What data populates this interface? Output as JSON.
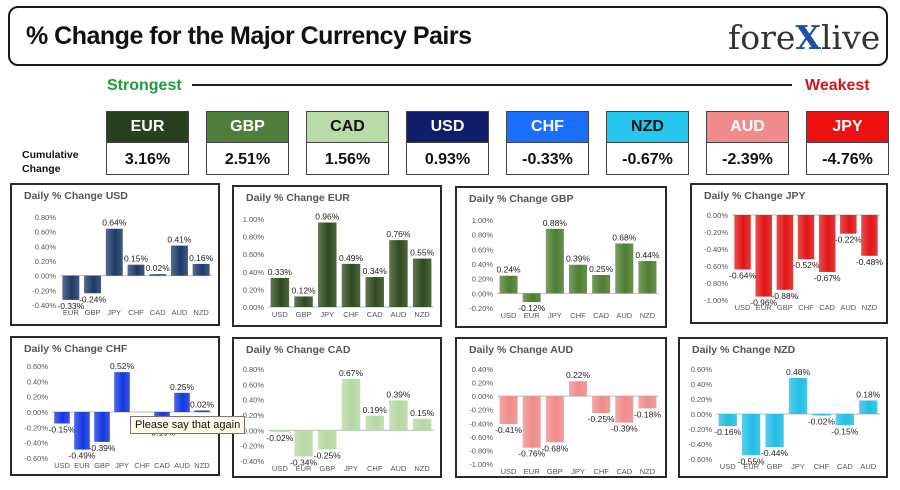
{
  "header": {
    "title": "% Change for the Major Currency Pairs",
    "logo_part1": "fore",
    "logo_x": "X",
    "logo_part2": "live"
  },
  "scale": {
    "strongest": "Strongest",
    "weakest": "Weakest"
  },
  "cumulative_label": "Cumulative Change",
  "currencies": [
    {
      "code": "EUR",
      "value": "3.16%",
      "bg": "#264020",
      "fg": "#ffffff"
    },
    {
      "code": "GBP",
      "value": "2.51%",
      "bg": "#4f7d3a",
      "fg": "#ffffff"
    },
    {
      "code": "CAD",
      "value": "1.56%",
      "bg": "#b9dba7",
      "fg": "#111111"
    },
    {
      "code": "USD",
      "value": "0.93%",
      "bg": "#0f1d6b",
      "fg": "#ffffff"
    },
    {
      "code": "CHF",
      "value": "-0.33%",
      "bg": "#1a6fff",
      "fg": "#ffffff"
    },
    {
      "code": "NZD",
      "value": "-0.67%",
      "bg": "#25c7ef",
      "fg": "#111111"
    },
    {
      "code": "AUD",
      "value": "-2.39%",
      "bg": "#f28b8b",
      "fg": "#ffffff"
    },
    {
      "code": "JPY",
      "value": "-4.76%",
      "bg": "#ee1111",
      "fg": "#ffffff"
    }
  ],
  "tooltip": "Please say that again",
  "chart_data": [
    {
      "type": "bar",
      "title": "Daily % Change USD",
      "color": "#1f3a68",
      "categories": [
        "EUR",
        "GBP",
        "JPY",
        "CHF",
        "CAD",
        "AUD",
        "NZD"
      ],
      "values": [
        -0.33,
        -0.24,
        0.64,
        0.15,
        0.02,
        0.41,
        0.16
      ],
      "labels": [
        "-0.33%",
        "-0.24%",
        "0.64%",
        "0.15%",
        "0.02%",
        "0.41%",
        "0.16%"
      ],
      "yticks": [
        "0.80%",
        "0.60%",
        "0.40%",
        "0.20%",
        "0.00%",
        "-0.20%",
        "-0.40%"
      ],
      "ylim": [
        -0.4,
        0.8
      ]
    },
    {
      "type": "bar",
      "title": "Daily % Change EUR",
      "color": "#2f4a1d",
      "categories": [
        "USD",
        "GBP",
        "JPY",
        "CHF",
        "CAD",
        "AUD",
        "NZD"
      ],
      "values": [
        0.33,
        0.12,
        0.96,
        0.49,
        0.34,
        0.76,
        0.55
      ],
      "labels": [
        "0.33%",
        "0.12%",
        "0.96%",
        "0.49%",
        "0.34%",
        "0.76%",
        "0.55%"
      ],
      "yticks": [
        "1.00%",
        "0.80%",
        "0.60%",
        "0.40%",
        "0.20%",
        "0.00%"
      ],
      "ylim": [
        0,
        1.0
      ]
    },
    {
      "type": "bar",
      "title": "Daily % Change GBP",
      "color": "#4d7d30",
      "categories": [
        "USD",
        "EUR",
        "JPY",
        "CHF",
        "CAD",
        "AUD",
        "NZD"
      ],
      "values": [
        0.24,
        -0.12,
        0.88,
        0.39,
        0.25,
        0.68,
        0.44
      ],
      "labels": [
        "0.24%",
        "-0.12%",
        "0.88%",
        "0.39%",
        "0.25%",
        "0.68%",
        "0.44%"
      ],
      "yticks": [
        "1.00%",
        "0.80%",
        "0.60%",
        "0.40%",
        "0.20%",
        "0.00%",
        "-0.20%"
      ],
      "ylim": [
        -0.2,
        1.0
      ]
    },
    {
      "type": "bar",
      "title": "Daily % Change JPY",
      "color": "#e21515",
      "categories": [
        "USD",
        "EUR",
        "GBP",
        "CHF",
        "CAD",
        "AUD",
        "NZD"
      ],
      "values": [
        -0.64,
        -0.96,
        -0.88,
        -0.52,
        -0.67,
        -0.22,
        -0.48
      ],
      "labels": [
        "-0.64%",
        "-0.96%",
        "-0.88%",
        "-0.52%",
        "-0.67%",
        "-0.22%",
        "-0.48%"
      ],
      "yticks": [
        "0.00%",
        "-0.20%",
        "-0.40%",
        "-0.60%",
        "-0.80%",
        "-1.00%"
      ],
      "ylim": [
        -1.0,
        0
      ]
    },
    {
      "type": "bar",
      "title": "Daily % Change CHF",
      "color": "#1537e0",
      "categories": [
        "USD",
        "EUR",
        "GBP",
        "JPY",
        "CHF",
        "CAD",
        "AUD",
        "NZD"
      ],
      "values": [
        -0.15,
        -0.49,
        -0.39,
        0.52,
        null,
        -0.19,
        0.25,
        0.02
      ],
      "labels": [
        "-0.15%",
        "-0.49%",
        "-0.39%",
        "0.52%",
        "",
        "-0.19%",
        "0.25%",
        "0.02%"
      ],
      "yticks": [
        "0.60%",
        "0.40%",
        "0.20%",
        "0.00%",
        "-0.20%",
        "-0.40%",
        "-0.60%"
      ],
      "ylim": [
        -0.6,
        0.6
      ]
    },
    {
      "type": "bar",
      "title": "Daily % Change CAD",
      "color": "#b5d9a3",
      "categories": [
        "USD",
        "EUR",
        "GBP",
        "JPY",
        "CHF",
        "AUD",
        "NZD"
      ],
      "values": [
        -0.02,
        -0.34,
        -0.25,
        0.67,
        0.19,
        0.39,
        0.15
      ],
      "labels": [
        "-0.02%",
        "-0.34%",
        "-0.25%",
        "0.67%",
        "0.19%",
        "0.39%",
        "0.15%"
      ],
      "yticks": [
        "0.80%",
        "0.60%",
        "0.40%",
        "0.20%",
        "0.00%",
        "-0.20%",
        "-0.40%"
      ],
      "ylim": [
        -0.4,
        0.8
      ]
    },
    {
      "type": "bar",
      "title": "Daily % Change AUD",
      "color": "#ef8b8b",
      "categories": [
        "USD",
        "EUR",
        "GBP",
        "JPY",
        "CHF",
        "CAD",
        "NZD"
      ],
      "values": [
        -0.41,
        -0.76,
        -0.68,
        0.22,
        -0.25,
        -0.39,
        -0.18
      ],
      "labels": [
        "-0.41%",
        "-0.76%",
        "-0.68%",
        "0.22%",
        "-0.25%",
        "-0.39%",
        "-0.18%"
      ],
      "yticks": [
        "0.40%",
        "0.20%",
        "0.00%",
        "-0.20%",
        "-0.40%",
        "-0.60%",
        "-0.80%",
        "-1.00%"
      ],
      "ylim": [
        -1.0,
        0.4
      ]
    },
    {
      "type": "bar",
      "title": "Daily % Change NZD",
      "color": "#22bde6",
      "categories": [
        "USD",
        "EUR",
        "GBP",
        "JPY",
        "CHF",
        "CAD",
        "AUD"
      ],
      "values": [
        -0.16,
        -0.55,
        -0.44,
        0.48,
        -0.02,
        -0.15,
        0.18
      ],
      "labels": [
        "-0.16%",
        "-0.55%",
        "-0.44%",
        "0.48%",
        "-0.02%",
        "-0.15%",
        "0.18%"
      ],
      "yticks": [
        "0.60%",
        "0.40%",
        "0.20%",
        "0.00%",
        "-0.20%",
        "-0.40%",
        "-0.60%"
      ],
      "ylim": [
        -0.6,
        0.6
      ]
    }
  ]
}
